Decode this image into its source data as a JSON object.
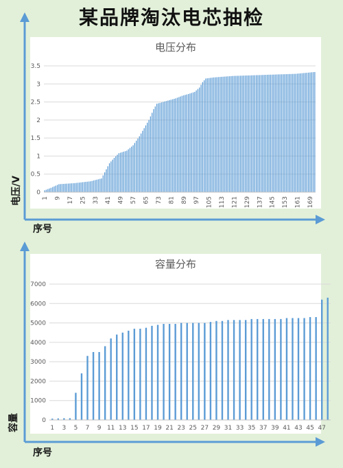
{
  "page": {
    "title": "某品牌淘汰电芯抽检"
  },
  "colors": {
    "background": "#e2f0d9",
    "bar": "#5b9bd5",
    "outer_axis": "#5b9bd5",
    "panel": "#ffffff",
    "grid": "#d9d9d9"
  },
  "chart_data": [
    {
      "type": "bar",
      "title": "电压分布",
      "xlabel": "序号",
      "ylabel": "电压/V",
      "ylim": [
        0,
        3.5
      ],
      "y_ticks": [
        "0",
        "0.5",
        "1",
        "1.5",
        "2",
        "2.5",
        "3",
        "3.5"
      ],
      "x_tick_labels": [
        "1",
        "9",
        "17",
        "25",
        "33",
        "41",
        "49",
        "57",
        "65",
        "73",
        "81",
        "89",
        "97",
        "105",
        "113",
        "121",
        "129",
        "137",
        "145",
        "153",
        "161",
        "169"
      ],
      "x_range": [
        1,
        172
      ],
      "grid": true,
      "profile_points": [
        [
          1,
          0.05
        ],
        [
          5,
          0.12
        ],
        [
          10,
          0.22
        ],
        [
          20,
          0.25
        ],
        [
          30,
          0.3
        ],
        [
          37,
          0.38
        ],
        [
          39,
          0.55
        ],
        [
          42,
          0.8
        ],
        [
          45,
          0.95
        ],
        [
          48,
          1.08
        ],
        [
          53,
          1.15
        ],
        [
          57,
          1.3
        ],
        [
          61,
          1.55
        ],
        [
          65,
          1.85
        ],
        [
          67,
          2.0
        ],
        [
          70,
          2.3
        ],
        [
          72,
          2.45
        ],
        [
          76,
          2.5
        ],
        [
          80,
          2.55
        ],
        [
          84,
          2.6
        ],
        [
          88,
          2.67
        ],
        [
          92,
          2.72
        ],
        [
          96,
          2.78
        ],
        [
          99,
          2.9
        ],
        [
          101,
          3.05
        ],
        [
          103,
          3.15
        ],
        [
          108,
          3.18
        ],
        [
          120,
          3.22
        ],
        [
          140,
          3.25
        ],
        [
          160,
          3.28
        ],
        [
          172,
          3.33
        ]
      ]
    },
    {
      "type": "bar",
      "title": "容量分布",
      "xlabel": "序号",
      "ylabel": "容量",
      "ylim": [
        0,
        7000
      ],
      "y_ticks": [
        "0",
        "1000",
        "2000",
        "3000",
        "4000",
        "5000",
        "6000",
        "7000"
      ],
      "x_tick_labels": [
        "1",
        "3",
        "5",
        "7",
        "9",
        "11",
        "13",
        "15",
        "17",
        "19",
        "21",
        "23",
        "25",
        "27",
        "29",
        "31",
        "33",
        "35",
        "37",
        "39",
        "41",
        "43",
        "45",
        "47"
      ],
      "grid": true,
      "values": [
        70,
        80,
        90,
        90,
        1400,
        2400,
        3300,
        3500,
        3500,
        3800,
        4200,
        4400,
        4500,
        4600,
        4700,
        4700,
        4750,
        4850,
        4900,
        4950,
        4950,
        4950,
        5000,
        5000,
        5000,
        5000,
        5000,
        5050,
        5100,
        5100,
        5150,
        5150,
        5150,
        5150,
        5200,
        5200,
        5200,
        5200,
        5200,
        5200,
        5250,
        5250,
        5250,
        5250,
        5300,
        5300,
        6200,
        6300
      ]
    }
  ]
}
